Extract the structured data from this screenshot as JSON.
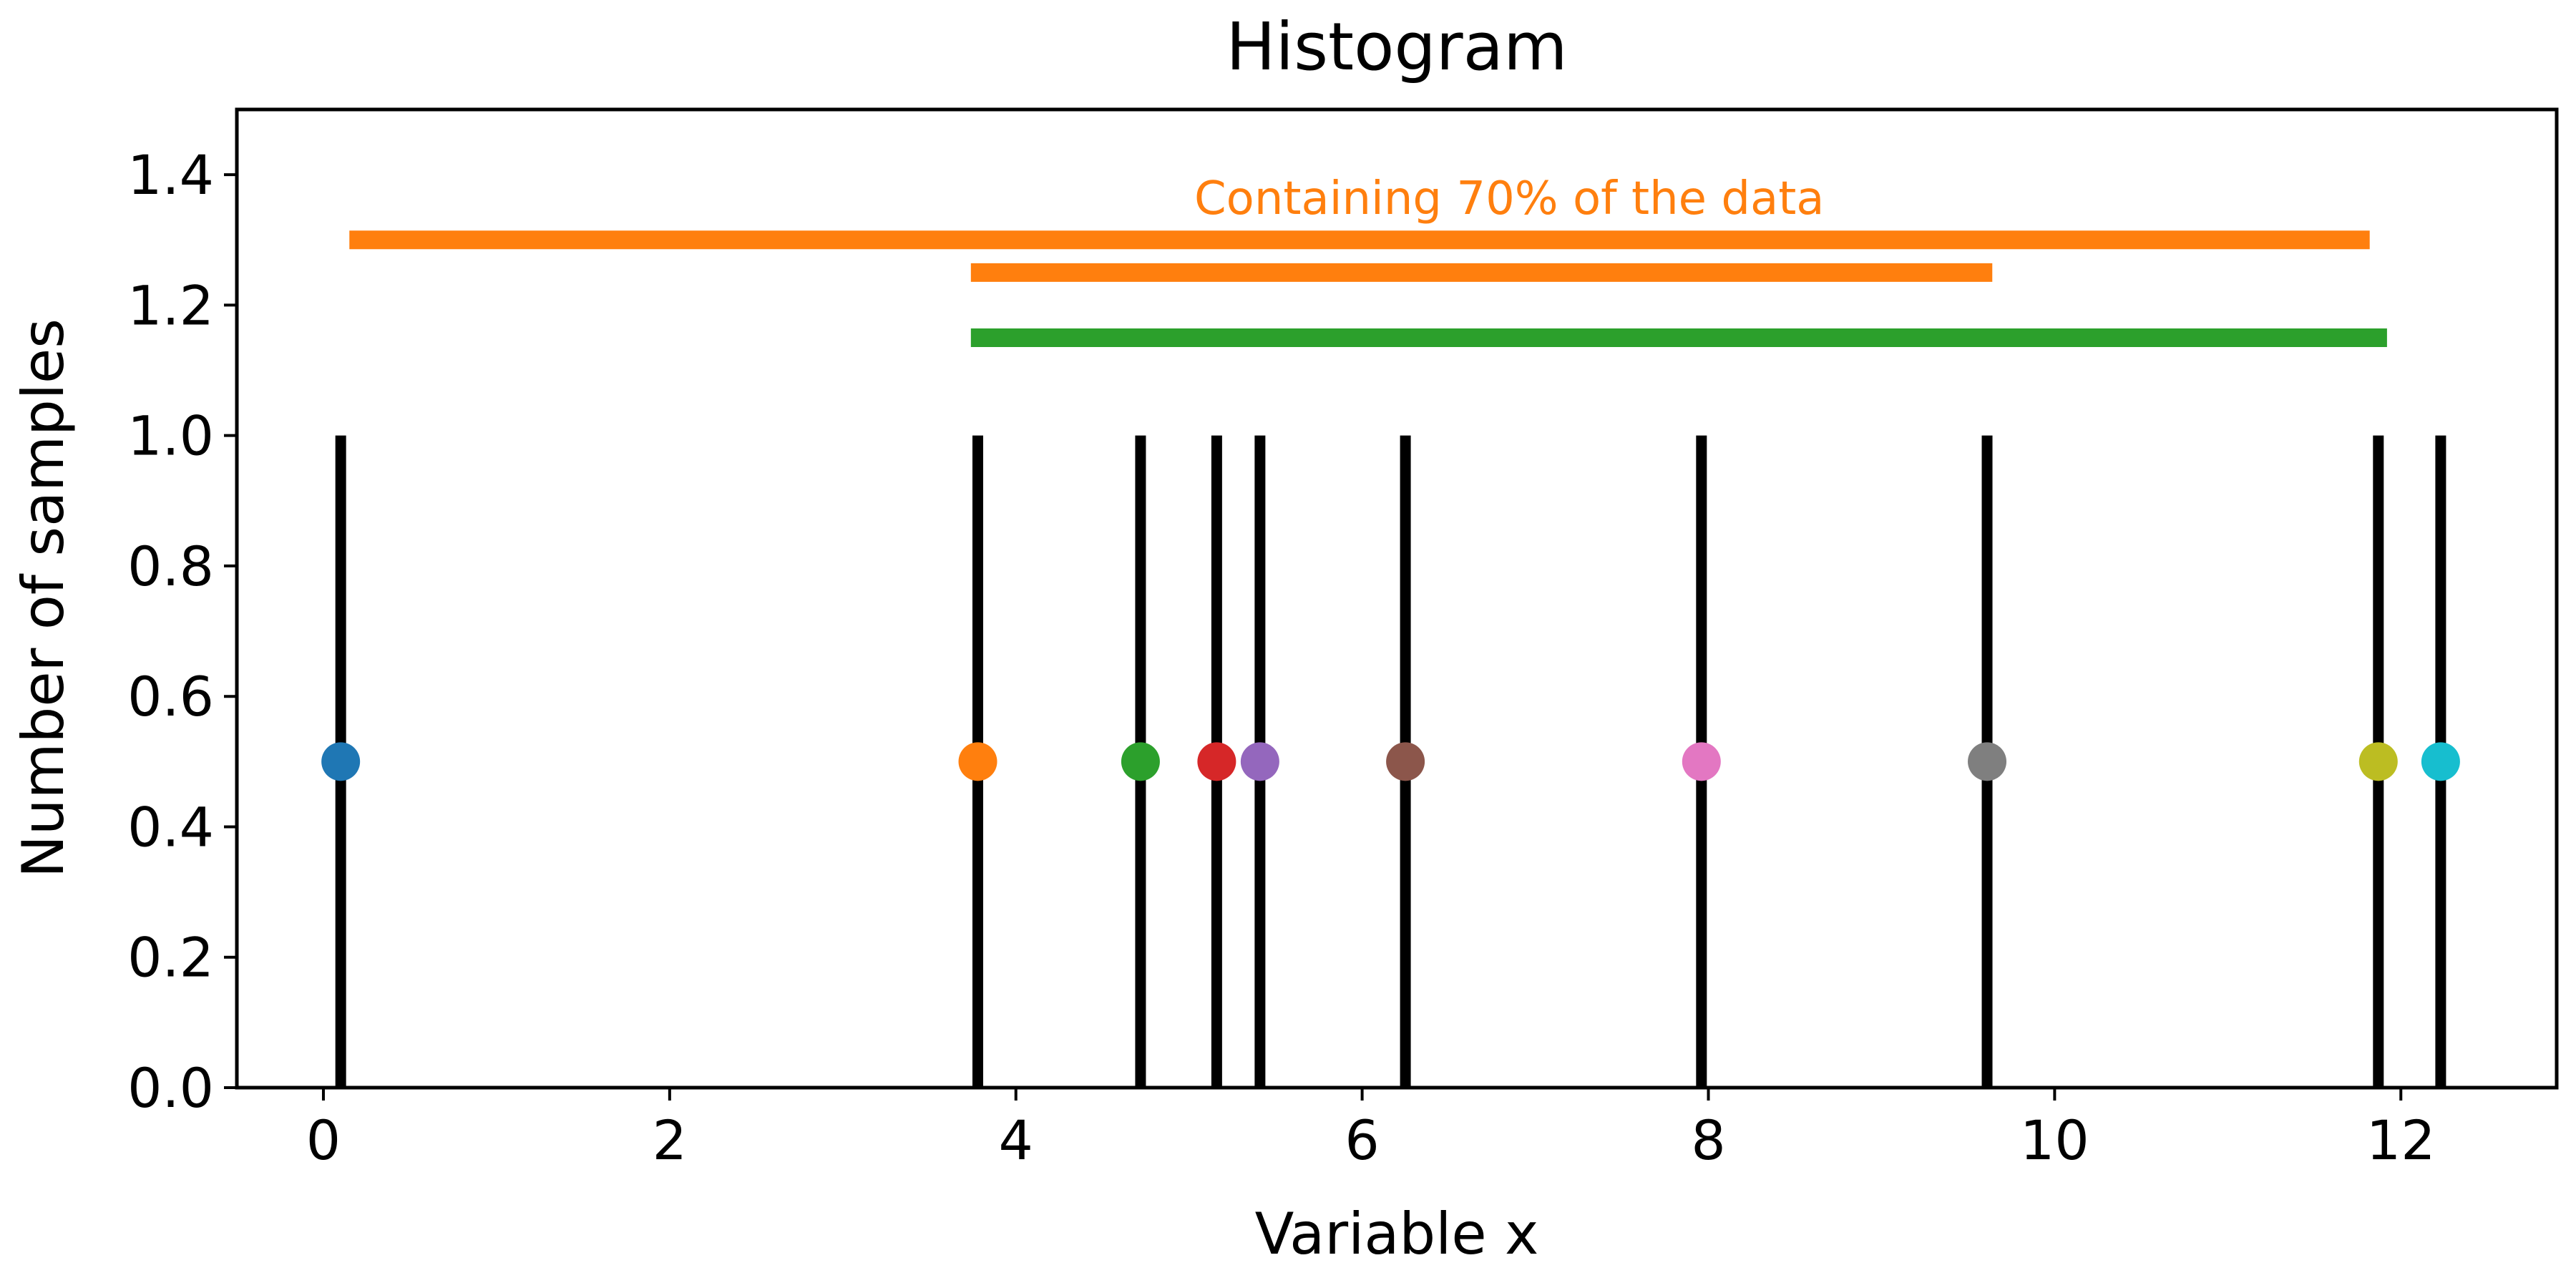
{
  "chart_data": {
    "type": "scatter",
    "title": "Histogram",
    "xlabel": "Variable x",
    "ylabel": "Number of samples",
    "xlim": [
      -0.5,
      12.9
    ],
    "ylim": [
      0,
      1.5
    ],
    "x_ticks": [
      0,
      2,
      4,
      6,
      8,
      10,
      12
    ],
    "y_ticks": [
      0.0,
      0.2,
      0.4,
      0.6,
      0.8,
      1.0,
      1.2,
      1.4
    ],
    "x_tick_labels": [
      "0",
      "2",
      "4",
      "6",
      "8",
      "10",
      "12"
    ],
    "y_tick_labels": [
      "0.0",
      "0.2",
      "0.4",
      "0.6",
      "0.8",
      "1.0",
      "1.2",
      "1.4"
    ],
    "grid": false,
    "samples": [
      0.1,
      3.78,
      4.72,
      5.16,
      5.41,
      6.25,
      7.96,
      9.61,
      11.87,
      12.23
    ],
    "sample_bar_height": 1.0,
    "point_y": 0.5,
    "point_colors": [
      "#1f77b4",
      "#ff7f0e",
      "#2ca02c",
      "#d62728",
      "#9467bd",
      "#8c564b",
      "#e377c2",
      "#7f7f7f",
      "#bcbd22",
      "#17becf"
    ],
    "intervals": [
      {
        "x_start": 0.15,
        "x_end": 11.82,
        "y": 1.3,
        "color": "#ff7f0e"
      },
      {
        "x_start": 3.74,
        "x_end": 9.64,
        "y": 1.25,
        "color": "#ff7f0e"
      },
      {
        "x_start": 3.74,
        "x_end": 11.92,
        "y": 1.15,
        "color": "#2ca02c"
      }
    ],
    "annotation": {
      "text": "Containing 70% of the data",
      "x": 6.85,
      "y": 1.34,
      "color": "#ff7f0e"
    }
  }
}
